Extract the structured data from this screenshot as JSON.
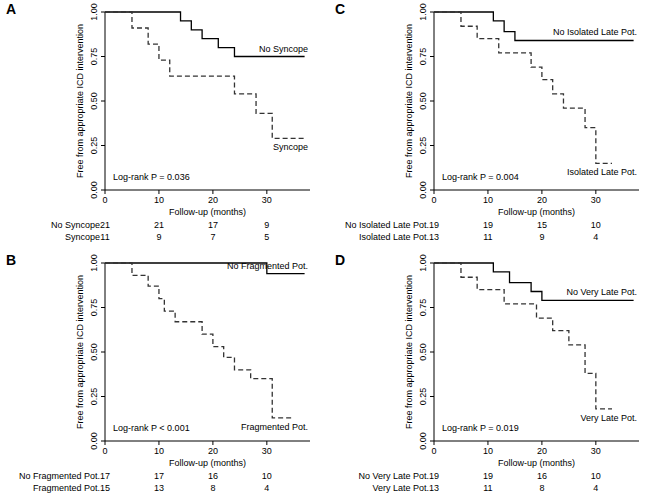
{
  "chart_data": [
    {
      "type": "step",
      "title": "A",
      "annotation": "Log-rank P = 0.036",
      "xlabel": "Follow-up (months)",
      "ylabel": "Free from appropriate ICD intervention",
      "xlim": [
        0,
        38
      ],
      "ylim": [
        0,
        1
      ],
      "xticks": [
        0,
        10,
        20,
        30
      ],
      "yticks": [
        {
          "value": 0,
          "label": "0.00"
        },
        {
          "value": 0.25,
          "label": "0.25"
        },
        {
          "value": 0.5,
          "label": "0.50"
        },
        {
          "value": 0.75,
          "label": "0.75"
        },
        {
          "value": 1,
          "label": "1.00"
        }
      ],
      "grid": false,
      "risk_times": [
        0,
        10,
        20,
        30
      ],
      "series": [
        {
          "name": "No Syncope",
          "color": "#000000",
          "line_style": "solid",
          "x": [
            0,
            14,
            16,
            18,
            21,
            24,
            37
          ],
          "values": [
            1,
            0.95,
            0.9,
            0.85,
            0.8,
            0.75,
            0.75
          ],
          "at_risk": [
            21,
            21,
            17,
            9
          ]
        },
        {
          "name": "Syncope",
          "color": "#333333",
          "line_style": "dashed",
          "x": [
            0,
            5,
            8,
            10,
            12,
            24,
            28,
            31,
            37
          ],
          "values": [
            1,
            0.91,
            0.82,
            0.73,
            0.64,
            0.54,
            0.43,
            0.29,
            0.29
          ],
          "at_risk": [
            11,
            9,
            7,
            5
          ]
        }
      ]
    },
    {
      "type": "step",
      "title": "B",
      "annotation": "Log-rank P < 0.001",
      "xlabel": "Follow-up (months)",
      "ylabel": "Free from appropriate ICD intervention",
      "xlim": [
        0,
        38
      ],
      "ylim": [
        0,
        1
      ],
      "xticks": [
        0,
        10,
        20,
        30
      ],
      "yticks": [
        {
          "value": 0,
          "label": "0.00"
        },
        {
          "value": 0.25,
          "label": "0.25"
        },
        {
          "value": 0.5,
          "label": "0.50"
        },
        {
          "value": 0.75,
          "label": "0.75"
        },
        {
          "value": 1,
          "label": "1.00"
        }
      ],
      "grid": false,
      "risk_times": [
        0,
        10,
        20,
        30
      ],
      "series": [
        {
          "name": "No Fragmented Pot.",
          "color": "#000000",
          "line_style": "solid",
          "x": [
            0,
            30,
            37
          ],
          "values": [
            1,
            0.94,
            0.94
          ],
          "at_risk": [
            17,
            17,
            16,
            10
          ]
        },
        {
          "name": "Fragmented Pot.",
          "color": "#333333",
          "line_style": "dashed",
          "x": [
            0,
            5,
            8,
            10,
            11,
            13,
            18,
            20,
            22,
            24,
            27,
            31,
            35
          ],
          "values": [
            1,
            0.93,
            0.87,
            0.8,
            0.73,
            0.67,
            0.6,
            0.53,
            0.47,
            0.4,
            0.35,
            0.13,
            0.13
          ],
          "at_risk": [
            15,
            13,
            8,
            4
          ]
        }
      ]
    },
    {
      "type": "step",
      "title": "C",
      "annotation": "Log-rank P = 0.004",
      "xlabel": "Follow-up (months)",
      "ylabel": "Free from appropriate ICD intervention",
      "xlim": [
        0,
        38
      ],
      "ylim": [
        0,
        1
      ],
      "xticks": [
        0,
        10,
        20,
        30
      ],
      "yticks": [
        {
          "value": 0,
          "label": "0.00"
        },
        {
          "value": 0.25,
          "label": "0.25"
        },
        {
          "value": 0.5,
          "label": "0.50"
        },
        {
          "value": 0.75,
          "label": "0.75"
        },
        {
          "value": 1,
          "label": "1.00"
        }
      ],
      "grid": false,
      "risk_times": [
        0,
        10,
        20,
        30
      ],
      "series": [
        {
          "name": "No Isolated Late Pot.",
          "color": "#000000",
          "line_style": "solid",
          "x": [
            0,
            11,
            13,
            15,
            37
          ],
          "values": [
            1,
            0.95,
            0.89,
            0.84,
            0.84
          ],
          "at_risk": [
            19,
            19,
            15,
            10
          ]
        },
        {
          "name": "Isolated Late Pot.",
          "color": "#333333",
          "line_style": "dashed",
          "x": [
            0,
            5,
            8,
            12,
            18,
            20,
            22,
            24,
            28,
            30,
            33
          ],
          "values": [
            1,
            0.92,
            0.85,
            0.77,
            0.69,
            0.62,
            0.54,
            0.46,
            0.35,
            0.15,
            0.15
          ],
          "at_risk": [
            13,
            11,
            9,
            4
          ]
        }
      ]
    },
    {
      "type": "step",
      "title": "D",
      "annotation": "Log-rank P = 0.019",
      "xlabel": "Follow-up (months)",
      "ylabel": "Free from appropriate ICD intervention",
      "xlim": [
        0,
        38
      ],
      "ylim": [
        0,
        1
      ],
      "xticks": [
        0,
        10,
        20,
        30
      ],
      "yticks": [
        {
          "value": 0,
          "label": "0.00"
        },
        {
          "value": 0.25,
          "label": "0.25"
        },
        {
          "value": 0.5,
          "label": "0.50"
        },
        {
          "value": 0.75,
          "label": "0.75"
        },
        {
          "value": 1,
          "label": "1.00"
        }
      ],
      "grid": false,
      "risk_times": [
        0,
        10,
        20,
        30
      ],
      "series": [
        {
          "name": "No Very Late Pot.",
          "color": "#000000",
          "line_style": "solid",
          "x": [
            0,
            11,
            14,
            18,
            20,
            37
          ],
          "values": [
            1,
            0.95,
            0.89,
            0.84,
            0.79,
            0.79
          ],
          "at_risk": [
            19,
            19,
            16,
            10
          ]
        },
        {
          "name": "Very Late Pot.",
          "color": "#333333",
          "line_style": "dashed",
          "x": [
            0,
            5,
            8,
            13,
            19,
            22,
            25,
            28,
            30,
            33
          ],
          "values": [
            1,
            0.92,
            0.85,
            0.77,
            0.69,
            0.62,
            0.54,
            0.38,
            0.18,
            0.18
          ],
          "at_risk": [
            13,
            11,
            8,
            4
          ]
        }
      ]
    }
  ]
}
